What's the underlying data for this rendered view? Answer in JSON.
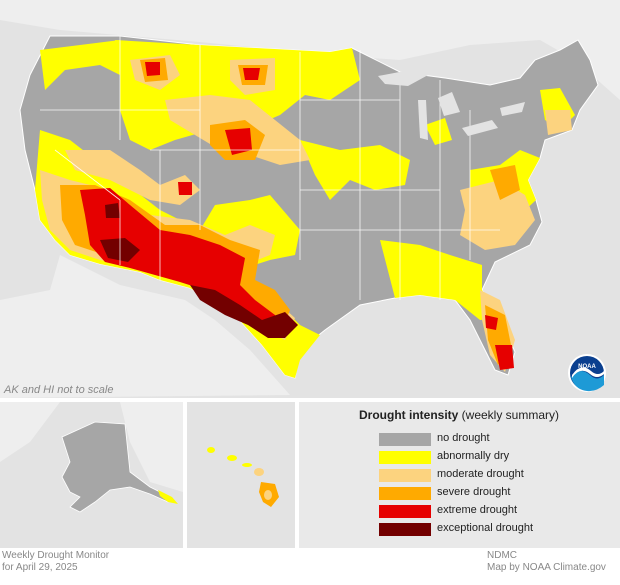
{
  "map": {
    "scale_note": "AK and HI not to scale",
    "logo_text": "NOAA",
    "colors": {
      "background": "#e3e3e3",
      "none": "#a6a6a6",
      "D0": "#ffff00",
      "D1": "#fcd37f",
      "D2": "#ffaa00",
      "D3": "#e60000",
      "D4": "#730000"
    }
  },
  "legend": {
    "title_bold": "Drought intensity",
    "title_rest": " (weekly summary)",
    "items": [
      {
        "label": "no drought",
        "color": "#a6a6a6"
      },
      {
        "label": "abnormally dry",
        "color": "#ffff00"
      },
      {
        "label": "moderate drought",
        "color": "#fcd37f"
      },
      {
        "label": "severe drought",
        "color": "#ffaa00"
      },
      {
        "label": "extreme drought",
        "color": "#e60000"
      },
      {
        "label": "exceptional drought",
        "color": "#730000"
      }
    ]
  },
  "footer": {
    "left_line1": "Weekly Drought Monitor",
    "left_line2": "for April 29, 2025",
    "right_line1": "NDMC",
    "right_line2": "Map by NOAA Climate.gov"
  }
}
